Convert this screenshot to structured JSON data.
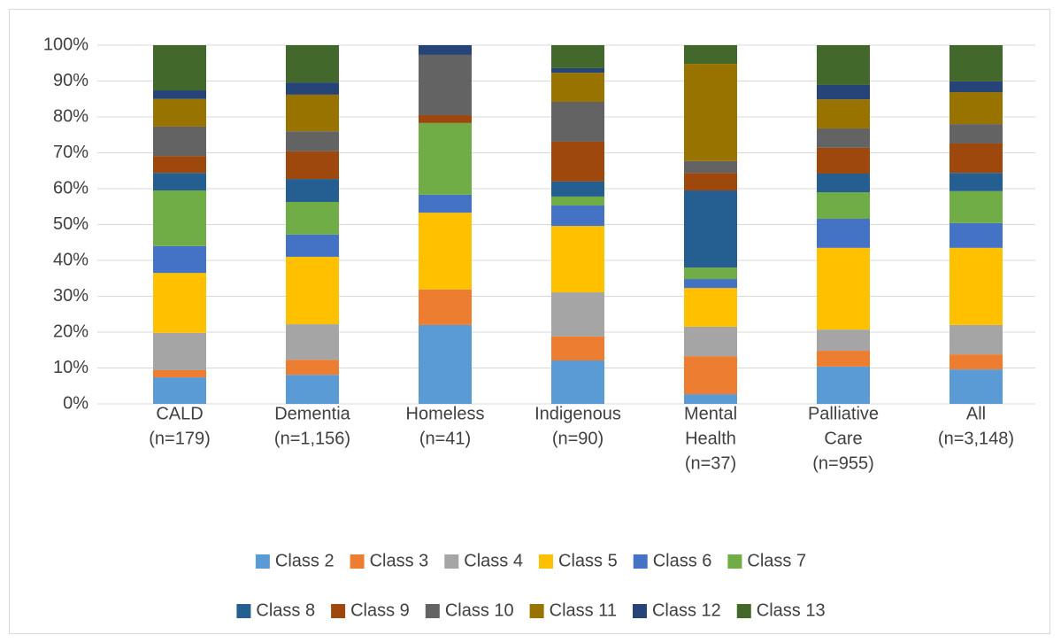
{
  "chart_data": {
    "type": "stacked_bar",
    "categories": [
      [
        "CALD",
        "(n=179)"
      ],
      [
        "Dementia",
        "(n=1,156)"
      ],
      [
        "Homeless",
        "(n=41)"
      ],
      [
        "Indigenous",
        "(n=90)"
      ],
      [
        "Mental",
        "Health",
        "(n=37)"
      ],
      [
        "Palliative",
        "Care",
        "(n=955)"
      ],
      [
        "All",
        "(n=3,148)"
      ]
    ],
    "series": [
      {
        "name": "Class 2",
        "color": "#5b9bd5",
        "values": [
          7.4,
          8.1,
          22,
          12.1,
          2.7,
          10.4,
          9.6
        ]
      },
      {
        "name": "Class 3",
        "color": "#ed7d31",
        "values": [
          2,
          4.2,
          9.9,
          6.7,
          10.6,
          4.4,
          4.2
        ]
      },
      {
        "name": "Class 4",
        "color": "#a5a5a5",
        "values": [
          10.4,
          9.9,
          0,
          12.3,
          8.2,
          5.9,
          8.2
        ]
      },
      {
        "name": "Class 5",
        "color": "#ffc000",
        "values": [
          16.7,
          18.8,
          21.4,
          18.5,
          10.8,
          22.8,
          21.5
        ]
      },
      {
        "name": "Class 6",
        "color": "#4472c4",
        "values": [
          7.5,
          6.2,
          5,
          5.7,
          2.5,
          8.1,
          6.9
        ]
      },
      {
        "name": "Class 7",
        "color": "#70ad47",
        "values": [
          15.5,
          9.1,
          20,
          2.5,
          3.2,
          7.4,
          8.9
        ]
      },
      {
        "name": "Class 8",
        "color": "#255e91",
        "values": [
          4.9,
          6.4,
          0,
          4.2,
          21.5,
          5.2,
          5.1
        ]
      },
      {
        "name": "Class 9",
        "color": "#9e480e",
        "values": [
          4.7,
          7.7,
          2.2,
          11.1,
          4.9,
          7.2,
          8.2
        ]
      },
      {
        "name": "Class 10",
        "color": "#636363",
        "values": [
          8.2,
          5.6,
          16.8,
          11.1,
          3.3,
          5.4,
          5.4
        ]
      },
      {
        "name": "Class 11",
        "color": "#997300",
        "values": [
          7.7,
          10.2,
          0,
          8.1,
          27.1,
          8.1,
          8.9
        ]
      },
      {
        "name": "Class 12",
        "color": "#264478",
        "values": [
          2.4,
          3.4,
          2.7,
          1.3,
          0,
          4,
          3
        ]
      },
      {
        "name": "Class 13",
        "color": "#43682b",
        "values": [
          12.6,
          10.4,
          0,
          6.4,
          5.2,
          11.1,
          10.1
        ]
      }
    ],
    "ylim": [
      0,
      100
    ],
    "yticks": [
      {
        "value": 0,
        "label": "0%"
      },
      {
        "value": 10,
        "label": "10%"
      },
      {
        "value": 20,
        "label": "20%"
      },
      {
        "value": 30,
        "label": "30%"
      },
      {
        "value": 40,
        "label": "40%"
      },
      {
        "value": 50,
        "label": "50%"
      },
      {
        "value": 60,
        "label": "60%"
      },
      {
        "value": 70,
        "label": "70%"
      },
      {
        "value": 80,
        "label": "80%"
      },
      {
        "value": 90,
        "label": "90%"
      },
      {
        "value": 100,
        "label": "100%"
      }
    ],
    "grid": true,
    "legend": "bottom"
  }
}
